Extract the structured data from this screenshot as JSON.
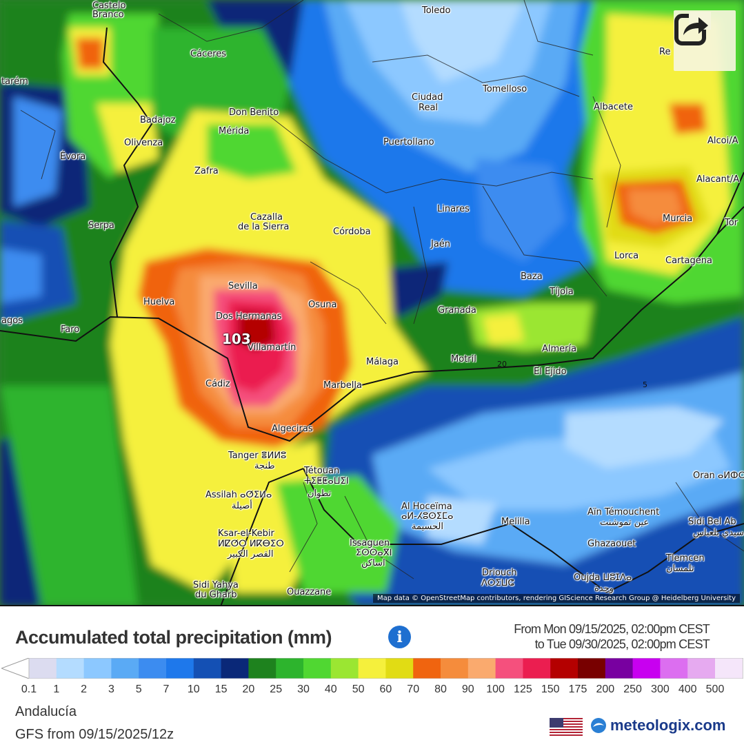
{
  "colors": {
    "sea_dark": "#0a2f7a",
    "light_blue": "#a9d3ff",
    "green_dark": "#1a7f1a",
    "green": "#33c233",
    "lime": "#8ae62b",
    "yellow": "#f2ef3a",
    "orange": "#f0741c",
    "red": "#e01e4c",
    "darkred": "#990000"
  },
  "map": {
    "max_value_label": "103",
    "share_icon": "share-icon",
    "credits": "Map data © OpenStreetMap contributors, rendering GIScience Research Group @ Heidelberg University",
    "contour_labels": [
      "20",
      "5"
    ],
    "cities": [
      {
        "name": "Castelo"
      },
      {
        "name": "Branco"
      },
      {
        "name": "Cáceres"
      },
      {
        "name": "Toledo"
      },
      {
        "name": "Tomelloso"
      },
      {
        "name": "Ciudad"
      },
      {
        "name": "Real"
      },
      {
        "name": "Albacete"
      },
      {
        "name": "Re"
      },
      {
        "name": "tarém"
      },
      {
        "name": "Badajoz"
      },
      {
        "name": "Don Benito"
      },
      {
        "name": "Mérida"
      },
      {
        "name": "Olivenza"
      },
      {
        "name": "Évora"
      },
      {
        "name": "Puertollano"
      },
      {
        "name": "Alcoi/A"
      },
      {
        "name": "Zafra"
      },
      {
        "name": "Alacant/A"
      },
      {
        "name": "Linares"
      },
      {
        "name": "Cazalla"
      },
      {
        "name": "de la Sierra"
      },
      {
        "name": "Serpa"
      },
      {
        "name": "Córdoba"
      },
      {
        "name": "Murcia"
      },
      {
        "name": "Tor"
      },
      {
        "name": "Jaén"
      },
      {
        "name": "Lorca"
      },
      {
        "name": "Cartagena"
      },
      {
        "name": "Sevilla"
      },
      {
        "name": "Baza"
      },
      {
        "name": "Huelva"
      },
      {
        "name": "Osuna"
      },
      {
        "name": "Tíjola"
      },
      {
        "name": "Dos Hermanas"
      },
      {
        "name": "Granada"
      },
      {
        "name": "agos"
      },
      {
        "name": "Faro"
      },
      {
        "name": "Villamartín"
      },
      {
        "name": "Almería"
      },
      {
        "name": "Málaga"
      },
      {
        "name": "Motril"
      },
      {
        "name": "El Ejido"
      },
      {
        "name": "Cádiz"
      },
      {
        "name": "Marbella"
      },
      {
        "name": "Algeciras"
      },
      {
        "name": "Tanger ⴻⵍⵍⵓ"
      },
      {
        "name": "طنجة"
      },
      {
        "name": "Tétouan"
      },
      {
        "name": "ⵜⵉⵟⵟⴰⵡⵉⵏ"
      },
      {
        "name": "تطوان"
      },
      {
        "name": "Oran ⴰⵍⵀⵔ"
      },
      {
        "name": "Assilah ⴰⵚⵉⵍⴰ"
      },
      {
        "name": "أصيلة"
      },
      {
        "name": "Al Hoceïma"
      },
      {
        "name": "ⴰⵍ-ⵃⵓⵙⵉⵎⴰ"
      },
      {
        "name": "الحسيمة"
      },
      {
        "name": "Melilla"
      },
      {
        "name": "Aïn Témouchent"
      },
      {
        "name": "عين تموشنت"
      },
      {
        "name": "Sidi Bel Ab"
      },
      {
        "name": "سيدي بلعباس"
      },
      {
        "name": "Ksar-el-Kebir"
      },
      {
        "name": "ⵍⵇⵚⵔ ⵍⴽⴱⵉⵔ"
      },
      {
        "name": "القصر الكبير"
      },
      {
        "name": "Issaguen"
      },
      {
        "name": "ⵉⵙⵙⴰⴳⵏ"
      },
      {
        "name": "اساكن"
      },
      {
        "name": "Ghazaouet"
      },
      {
        "name": "Tlemcen"
      },
      {
        "name": "تلمسان"
      },
      {
        "name": "Driouch"
      },
      {
        "name": "ⴷⵔⵉⵡⵛ"
      },
      {
        "name": "Oujda ⵡⵓⵊⴷⴰ"
      },
      {
        "name": "وجدة"
      },
      {
        "name": "Sidi Yahya"
      },
      {
        "name": "du Gharb"
      },
      {
        "name": "Ouazzane"
      }
    ]
  },
  "legend": {
    "title": "Accumulated total precipitation (mm)",
    "info_icon": "info-icon",
    "period_from": "From Mon 09/15/2025, 02:00pm CEST",
    "period_to": "to Tue 09/30/2025, 02:00pm CEST",
    "scale": [
      {
        "label": "0.1",
        "color": "#dcdcf0"
      },
      {
        "label": "1",
        "color": "#b4dcff"
      },
      {
        "label": "2",
        "color": "#8cc8ff"
      },
      {
        "label": "3",
        "color": "#5aaaf5"
      },
      {
        "label": "5",
        "color": "#3c8cf0"
      },
      {
        "label": "7",
        "color": "#1e78eb"
      },
      {
        "label": "10",
        "color": "#1450b4"
      },
      {
        "label": "15",
        "color": "#0a2878"
      },
      {
        "label": "20",
        "color": "#1e821e"
      },
      {
        "label": "25",
        "color": "#2db42d"
      },
      {
        "label": "30",
        "color": "#50d732"
      },
      {
        "label": "40",
        "color": "#9be632"
      },
      {
        "label": "50",
        "color": "#f5f03c"
      },
      {
        "label": "60",
        "color": "#e1dc14"
      },
      {
        "label": "70",
        "color": "#f0640f"
      },
      {
        "label": "80",
        "color": "#f58c3c"
      },
      {
        "label": "90",
        "color": "#faaa6e"
      },
      {
        "label": "100",
        "color": "#f5507d"
      },
      {
        "label": "125",
        "color": "#eb1e50"
      },
      {
        "label": "150",
        "color": "#b40000"
      },
      {
        "label": "175",
        "color": "#780000"
      },
      {
        "label": "200",
        "color": "#7800a0"
      },
      {
        "label": "250",
        "color": "#c800f0"
      },
      {
        "label": "300",
        "color": "#dc6ef0"
      },
      {
        "label": "400",
        "color": "#e6aaf0"
      },
      {
        "label": "500",
        "color": "#f5e6fa"
      },
      {
        "label": "",
        "color": "#d2d2d2"
      }
    ]
  },
  "footer": {
    "region": "Andalucía",
    "model": "GFS from 09/15/2025/12z",
    "flag_icon": "us-flag-icon",
    "brand_icon": "meteologix-logo-icon",
    "brand": "meteologix.com"
  }
}
